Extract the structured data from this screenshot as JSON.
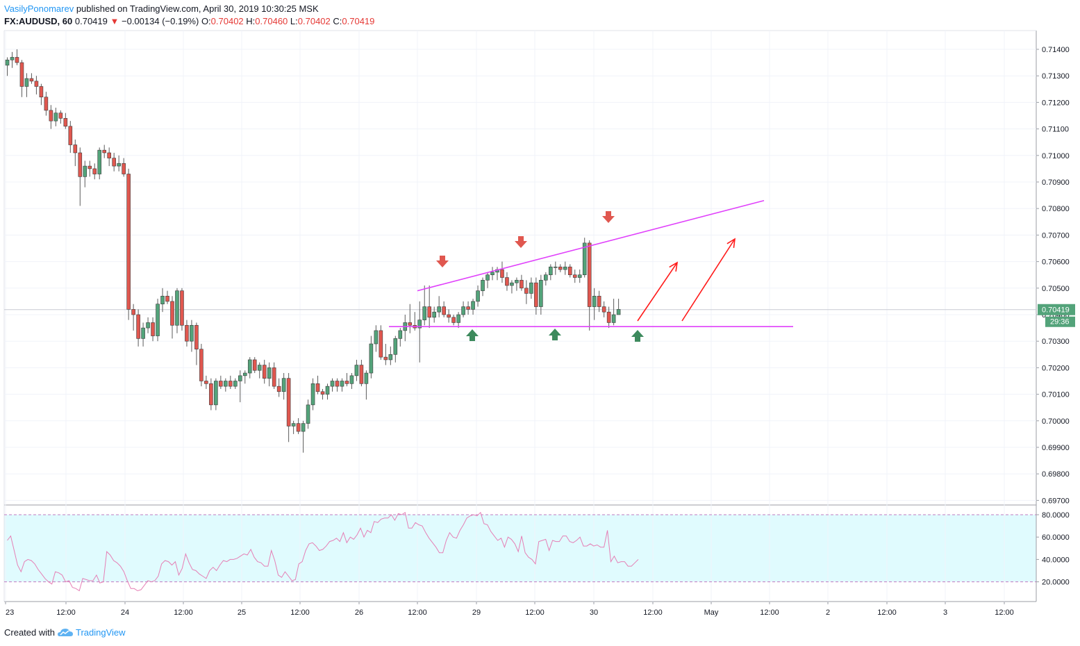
{
  "header": {
    "author": "VasilyPonomarev",
    "published": "published on TradingView.com, April 30, 2019 10:30:25 MSK",
    "symbol": "FX:AUDUSD, 60",
    "last": "0.70419",
    "change": "−0.00134 (−0.19%)",
    "open_label": "O:",
    "open": "0.70402",
    "high_label": "H:",
    "high": "0.70460",
    "low_label": "L:",
    "low": "0.70402",
    "close_label": "C:",
    "close": "0.70419"
  },
  "footer": {
    "created_with": "Created with",
    "brand": "TradingView"
  },
  "colors": {
    "up": "#53a37a",
    "down": "#e0574f",
    "pattern": "#e040fb",
    "arrow": "#ff1a1a",
    "rsi_line": "#e57fb5",
    "rsi_band": "#e0fbfe",
    "price_label": "#53a37a"
  },
  "chart_data": [
    {
      "type": "candlestick",
      "symbol": "FX:AUDUSD",
      "interval": "60",
      "y_ticks": [
        "0.71400",
        "0.71300",
        "0.71200",
        "0.71100",
        "0.71000",
        "0.70900",
        "0.70800",
        "0.70700",
        "0.70600",
        "0.70500",
        "0.70400",
        "0.70300",
        "0.70200",
        "0.70100",
        "0.70000",
        "0.69900",
        "0.69800",
        "0.69700"
      ],
      "ylim": [
        0.6965,
        0.715
      ],
      "x_ticks": [
        "23",
        "12:00",
        "24",
        "12:00",
        "25",
        "12:00",
        "26",
        "12:00",
        "29",
        "12:00",
        "30",
        "12:00",
        "May",
        "12:00",
        "2",
        "12:00",
        "3",
        "12:00"
      ],
      "current_price": "0.70419",
      "countdown": "29:36",
      "ohlc": [
        [
          0.7134,
          0.7137,
          0.713,
          0.7136
        ],
        [
          0.7136,
          0.7139,
          0.7133,
          0.7137
        ],
        [
          0.7137,
          0.714,
          0.7134,
          0.7135
        ],
        [
          0.7135,
          0.7136,
          0.7122,
          0.7126
        ],
        [
          0.7126,
          0.7131,
          0.7122,
          0.7129
        ],
        [
          0.7129,
          0.7131,
          0.7127,
          0.7128
        ],
        [
          0.7128,
          0.713,
          0.7123,
          0.7126
        ],
        [
          0.7126,
          0.7127,
          0.7119,
          0.7122
        ],
        [
          0.7122,
          0.7124,
          0.7115,
          0.7117
        ],
        [
          0.7117,
          0.7119,
          0.711,
          0.7113
        ],
        [
          0.7113,
          0.7118,
          0.7111,
          0.7116
        ],
        [
          0.7116,
          0.7117,
          0.7112,
          0.7114
        ],
        [
          0.7114,
          0.7116,
          0.711,
          0.7111
        ],
        [
          0.7111,
          0.7113,
          0.7101,
          0.7104
        ],
        [
          0.7104,
          0.7106,
          0.7096,
          0.7101
        ],
        [
          0.7101,
          0.7103,
          0.7081,
          0.7092
        ],
        [
          0.7092,
          0.7098,
          0.7088,
          0.7096
        ],
        [
          0.7096,
          0.7098,
          0.7092,
          0.7095
        ],
        [
          0.7095,
          0.7097,
          0.7091,
          0.7093
        ],
        [
          0.7093,
          0.7103,
          0.7091,
          0.7102
        ],
        [
          0.7102,
          0.7104,
          0.7099,
          0.7101
        ],
        [
          0.7101,
          0.7103,
          0.7096,
          0.7099
        ],
        [
          0.7099,
          0.7101,
          0.7094,
          0.7096
        ],
        [
          0.7096,
          0.71,
          0.7094,
          0.7097
        ],
        [
          0.7097,
          0.7099,
          0.7092,
          0.7093
        ],
        [
          0.7093,
          0.7095,
          0.7038,
          0.7042
        ],
        [
          0.7042,
          0.7044,
          0.7034,
          0.704
        ],
        [
          0.704,
          0.7042,
          0.7028,
          0.7031
        ],
        [
          0.7031,
          0.7037,
          0.7028,
          0.7035
        ],
        [
          0.7035,
          0.7039,
          0.7033,
          0.7037
        ],
        [
          0.7037,
          0.7039,
          0.703,
          0.7032
        ],
        [
          0.7032,
          0.7046,
          0.703,
          0.7044
        ],
        [
          0.7044,
          0.705,
          0.7041,
          0.7047
        ],
        [
          0.7047,
          0.7049,
          0.7044,
          0.7045
        ],
        [
          0.7045,
          0.7047,
          0.7031,
          0.7036
        ],
        [
          0.7036,
          0.705,
          0.7033,
          0.7049
        ],
        [
          0.7049,
          0.705,
          0.7034,
          0.7036
        ],
        [
          0.7036,
          0.7038,
          0.7028,
          0.703
        ],
        [
          0.703,
          0.7038,
          0.7026,
          0.7036
        ],
        [
          0.7036,
          0.7037,
          0.7021,
          0.7027
        ],
        [
          0.7027,
          0.7029,
          0.7013,
          0.7015
        ],
        [
          0.7015,
          0.7017,
          0.7012,
          0.7014
        ],
        [
          0.7014,
          0.7016,
          0.7004,
          0.7006
        ],
        [
          0.7006,
          0.7016,
          0.7004,
          0.7015
        ],
        [
          0.7015,
          0.7017,
          0.7012,
          0.7013
        ],
        [
          0.7013,
          0.7016,
          0.7011,
          0.7015
        ],
        [
          0.7015,
          0.7017,
          0.7012,
          0.7013
        ],
        [
          0.7013,
          0.7016,
          0.7012,
          0.7015
        ],
        [
          0.7015,
          0.7019,
          0.7007,
          0.7017
        ],
        [
          0.7017,
          0.7019,
          0.7014,
          0.7018
        ],
        [
          0.7018,
          0.7024,
          0.7016,
          0.7023
        ],
        [
          0.7023,
          0.7024,
          0.7018,
          0.7019
        ],
        [
          0.7019,
          0.7022,
          0.7016,
          0.7021
        ],
        [
          0.7021,
          0.7023,
          0.7014,
          0.7016
        ],
        [
          0.7016,
          0.7022,
          0.7013,
          0.702
        ],
        [
          0.702,
          0.7022,
          0.7012,
          0.7013
        ],
        [
          0.7013,
          0.7016,
          0.7009,
          0.7011
        ],
        [
          0.7011,
          0.7018,
          0.7008,
          0.7016
        ],
        [
          0.7016,
          0.7018,
          0.6992,
          0.6998
        ],
        [
          0.6998,
          0.7,
          0.6995,
          0.6999
        ],
        [
          0.6999,
          0.7001,
          0.6995,
          0.6996
        ],
        [
          0.6996,
          0.7,
          0.6988,
          0.6999
        ],
        [
          0.6999,
          0.7008,
          0.6997,
          0.7006
        ],
        [
          0.7006,
          0.7016,
          0.7004,
          0.7014
        ],
        [
          0.7014,
          0.7017,
          0.701,
          0.7011
        ],
        [
          0.7011,
          0.7012,
          0.7008,
          0.701
        ],
        [
          0.701,
          0.7014,
          0.7008,
          0.7013
        ],
        [
          0.7013,
          0.7016,
          0.7011,
          0.7015
        ],
        [
          0.7015,
          0.7016,
          0.7011,
          0.7013
        ],
        [
          0.7013,
          0.7016,
          0.7011,
          0.7015
        ],
        [
          0.7015,
          0.7018,
          0.7013,
          0.7014
        ],
        [
          0.7014,
          0.7018,
          0.7012,
          0.7017
        ],
        [
          0.7017,
          0.7023,
          0.7015,
          0.7021
        ],
        [
          0.7021,
          0.7023,
          0.7013,
          0.7014
        ],
        [
          0.7014,
          0.7019,
          0.7008,
          0.7018
        ],
        [
          0.7018,
          0.7032,
          0.7016,
          0.7029
        ],
        [
          0.7029,
          0.7036,
          0.7026,
          0.7034
        ],
        [
          0.7034,
          0.7036,
          0.7023,
          0.7024
        ],
        [
          0.7024,
          0.7029,
          0.7021,
          0.7023
        ],
        [
          0.7023,
          0.7028,
          0.7021,
          0.7025
        ],
        [
          0.7025,
          0.7032,
          0.7022,
          0.7031
        ],
        [
          0.7031,
          0.7035,
          0.7028,
          0.7034
        ],
        [
          0.7034,
          0.704,
          0.703,
          0.7037
        ],
        [
          0.7037,
          0.7044,
          0.7033,
          0.7036
        ],
        [
          0.7036,
          0.7041,
          0.7034,
          0.7035
        ],
        [
          0.7035,
          0.7045,
          0.7022,
          0.7038
        ],
        [
          0.7038,
          0.7051,
          0.7036,
          0.7043
        ],
        [
          0.7043,
          0.7051,
          0.7035,
          0.7039
        ],
        [
          0.7039,
          0.7043,
          0.7037,
          0.7041
        ],
        [
          0.7041,
          0.7047,
          0.7039,
          0.7043
        ],
        [
          0.7043,
          0.7045,
          0.7039,
          0.704
        ],
        [
          0.704,
          0.7042,
          0.7037,
          0.7039
        ],
        [
          0.7039,
          0.704,
          0.7036,
          0.7037
        ],
        [
          0.7037,
          0.7041,
          0.7035,
          0.704
        ],
        [
          0.704,
          0.7045,
          0.7039,
          0.7043
        ],
        [
          0.7043,
          0.7045,
          0.704,
          0.7042
        ],
        [
          0.7042,
          0.7046,
          0.704,
          0.7045
        ],
        [
          0.7045,
          0.7051,
          0.7043,
          0.7049
        ],
        [
          0.7049,
          0.7054,
          0.7047,
          0.7053
        ],
        [
          0.7053,
          0.7056,
          0.705,
          0.7055
        ],
        [
          0.7055,
          0.7058,
          0.7053,
          0.7056
        ],
        [
          0.7056,
          0.7058,
          0.7053,
          0.7057
        ],
        [
          0.7057,
          0.706,
          0.7052,
          0.7054
        ],
        [
          0.7054,
          0.7056,
          0.7049,
          0.7051
        ],
        [
          0.7051,
          0.7053,
          0.7048,
          0.7052
        ],
        [
          0.7052,
          0.7054,
          0.7049,
          0.7053
        ],
        [
          0.7053,
          0.7055,
          0.7049,
          0.705
        ],
        [
          0.705,
          0.7053,
          0.7044,
          0.7048
        ],
        [
          0.7048,
          0.7054,
          0.7046,
          0.7052
        ],
        [
          0.7052,
          0.7054,
          0.704,
          0.7043
        ],
        [
          0.7043,
          0.7055,
          0.704,
          0.7053
        ],
        [
          0.7053,
          0.7056,
          0.7051,
          0.7055
        ],
        [
          0.7055,
          0.7059,
          0.7053,
          0.7058
        ],
        [
          0.7058,
          0.706,
          0.7055,
          0.7058
        ],
        [
          0.7058,
          0.7059,
          0.7056,
          0.7057
        ],
        [
          0.7057,
          0.706,
          0.7055,
          0.7058
        ],
        [
          0.7058,
          0.7059,
          0.7054,
          0.7055
        ],
        [
          0.7055,
          0.7057,
          0.7052,
          0.7054
        ],
        [
          0.7054,
          0.7057,
          0.7052,
          0.7055
        ],
        [
          0.7055,
          0.7069,
          0.7054,
          0.7067
        ],
        [
          0.7067,
          0.7068,
          0.7034,
          0.7043
        ],
        [
          0.7043,
          0.705,
          0.7038,
          0.7047
        ],
        [
          0.7047,
          0.7049,
          0.7041,
          0.7043
        ],
        [
          0.7043,
          0.7045,
          0.7039,
          0.7041
        ],
        [
          0.7041,
          0.7043,
          0.7035,
          0.7037
        ],
        [
          0.7037,
          0.7046,
          0.7036,
          0.704
        ],
        [
          0.704,
          0.7046,
          0.704,
          0.7042
        ]
      ],
      "annotations": {
        "resistance_line": [
          [
            0.7049,
            0.7083
          ]
        ],
        "support_level": 0.70355,
        "sell_markers": [
          "down",
          "down",
          "down"
        ],
        "buy_markers": [
          "up",
          "up",
          "up"
        ],
        "projection_arrows": 2
      }
    },
    {
      "type": "line",
      "name": "RSI",
      "y_ticks": [
        "80.0000",
        "60.0000",
        "40.0000",
        "20.0000"
      ],
      "ylim": [
        6,
        88
      ],
      "bands": [
        20,
        80
      ],
      "values": [
        57,
        61,
        48,
        35,
        29,
        38,
        40,
        39,
        36,
        31,
        27,
        23,
        20,
        18,
        29,
        28,
        26,
        20,
        21,
        15,
        14,
        12,
        23,
        22,
        21,
        21,
        26,
        19,
        20,
        47,
        44,
        39,
        37,
        34,
        29,
        21,
        14,
        14,
        12,
        13,
        17,
        21,
        20,
        21,
        25,
        36,
        39,
        38,
        35,
        38,
        26,
        32,
        45,
        37,
        31,
        30,
        27,
        25,
        23,
        30,
        33,
        30,
        35,
        39,
        38,
        40,
        40,
        41,
        43,
        45,
        44,
        49,
        42,
        38,
        37,
        34,
        34,
        48,
        39,
        26,
        24,
        29,
        25,
        21,
        22,
        36,
        38,
        48,
        54,
        55,
        52,
        48,
        49,
        52,
        56,
        57,
        59,
        56,
        64,
        55,
        60,
        58,
        62,
        68,
        60,
        66,
        64,
        74,
        73,
        76,
        77,
        77,
        80,
        75,
        81,
        80,
        82,
        68,
        68,
        73,
        71,
        70,
        64,
        59,
        55,
        51,
        46,
        46,
        57,
        64,
        60,
        59,
        66,
        71,
        77,
        79,
        80,
        79,
        82,
        72,
        71,
        65,
        61,
        57,
        59,
        51,
        60,
        58,
        54,
        47,
        61,
        46,
        42,
        40,
        36,
        56,
        57,
        58,
        48,
        57,
        56,
        56,
        61,
        61,
        56,
        55,
        57,
        60,
        52,
        52,
        54,
        52,
        53,
        51,
        51,
        66,
        38,
        43,
        37,
        38,
        38,
        34,
        34,
        37,
        40
      ]
    }
  ]
}
